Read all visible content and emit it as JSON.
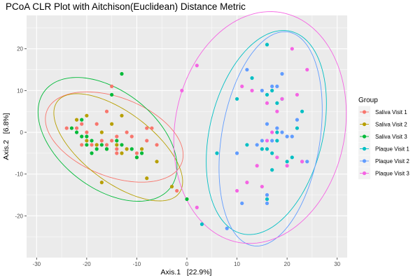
{
  "title": "PCoA CLR Plot with Aitchison(Euclidean) Distance Metric",
  "chart_data": {
    "type": "scatter",
    "title": "PCoA CLR Plot with Aitchison(Euclidean) Distance Metric",
    "xlabel": "Axis.1   [22.9%]",
    "ylabel": "Axis.2   [6.8%]",
    "xlim": [
      -32,
      32
    ],
    "ylim": [
      -30,
      28
    ],
    "xticks": [
      -30,
      -20,
      -10,
      0,
      10,
      20,
      30
    ],
    "yticks": [
      -20,
      -10,
      0,
      10,
      20
    ],
    "grid": true,
    "legend_title": "Group",
    "legend_position": "right",
    "series": [
      {
        "name": "Saliva Visit 1",
        "color": "#F8766D",
        "ellipse": true,
        "points": [
          [
            -24,
            1
          ],
          [
            -22,
            1
          ],
          [
            -21,
            2
          ],
          [
            -20,
            0
          ],
          [
            -21,
            -3
          ],
          [
            -19,
            -3
          ],
          [
            -18,
            2
          ],
          [
            -17,
            -2
          ],
          [
            -16,
            -3
          ],
          [
            -16,
            5
          ],
          [
            -14,
            -1
          ],
          [
            -14,
            -5
          ],
          [
            -12,
            0
          ],
          [
            -11,
            -1
          ],
          [
            -10,
            -5
          ],
          [
            -8,
            -2
          ],
          [
            -8,
            1
          ],
          [
            -7,
            1
          ],
          [
            -6,
            -3
          ],
          [
            -15,
            11
          ],
          [
            -2,
            -14
          ],
          [
            -14,
            -4
          ],
          [
            -18,
            -3
          ],
          [
            -15,
            -2
          ]
        ]
      },
      {
        "name": "Saliva Visit 2",
        "color": "#B79F00",
        "ellipse": true,
        "points": [
          [
            -22,
            3
          ],
          [
            -20,
            4
          ],
          [
            -18,
            -3
          ],
          [
            -17,
            0
          ],
          [
            -16,
            -4
          ],
          [
            -14,
            -3
          ],
          [
            -13,
            -5
          ],
          [
            -13,
            4
          ],
          [
            -12,
            -4
          ],
          [
            -10,
            -6
          ],
          [
            -9,
            -4
          ],
          [
            -8,
            -11
          ],
          [
            -17,
            -12
          ],
          [
            -6,
            -7
          ],
          [
            -20,
            -2
          ],
          [
            -15,
            2
          ],
          [
            -3,
            -13
          ]
        ]
      },
      {
        "name": "Saliva Visit 3",
        "color": "#00BA38",
        "ellipse": true,
        "points": [
          [
            -23,
            1
          ],
          [
            -22,
            0
          ],
          [
            -21,
            -1
          ],
          [
            -20,
            -1
          ],
          [
            -20,
            -3
          ],
          [
            -19,
            -2
          ],
          [
            -19,
            -5
          ],
          [
            -18,
            -4
          ],
          [
            -17,
            -3
          ],
          [
            -16,
            -4
          ],
          [
            -15,
            9
          ],
          [
            -13,
            14
          ],
          [
            -13,
            -3
          ],
          [
            -11,
            -4
          ],
          [
            -10,
            -6
          ],
          [
            -9,
            -5
          ],
          [
            -21,
            3
          ],
          [
            0,
            -16
          ],
          [
            -14,
            -2
          ]
        ]
      },
      {
        "name": "Plaque Visit 1",
        "color": "#00BFC4",
        "ellipse": true,
        "points": [
          [
            10,
            8
          ],
          [
            12,
            -3
          ],
          [
            13,
            13
          ],
          [
            15,
            -4
          ],
          [
            16,
            -4
          ],
          [
            16,
            21
          ],
          [
            16,
            -16
          ],
          [
            17,
            -9
          ],
          [
            17,
            -5
          ],
          [
            17,
            10
          ],
          [
            18,
            7
          ],
          [
            18,
            0
          ],
          [
            19,
            8
          ],
          [
            20,
            -7
          ],
          [
            21,
            -6
          ],
          [
            22,
            1
          ],
          [
            23,
            5
          ],
          [
            3,
            -22
          ],
          [
            6,
            -5
          ],
          [
            16,
            9
          ],
          [
            18,
            -2
          ]
        ]
      },
      {
        "name": "Plaque Visit 2",
        "color": "#619CFF",
        "ellipse": true,
        "points": [
          [
            12,
            15
          ],
          [
            14,
            -3
          ],
          [
            15,
            -2
          ],
          [
            15,
            10
          ],
          [
            16,
            -17
          ],
          [
            16,
            2
          ],
          [
            17,
            11
          ],
          [
            18,
            11
          ],
          [
            18,
            1
          ],
          [
            19,
            14
          ],
          [
            19,
            0
          ],
          [
            20,
            -1
          ],
          [
            21,
            -1
          ],
          [
            22,
            3
          ],
          [
            23,
            -7
          ],
          [
            24,
            -7
          ],
          [
            10,
            -5
          ],
          [
            8,
            -23
          ],
          [
            11,
            -17
          ],
          [
            16,
            -15
          ],
          [
            17,
            -2
          ]
        ]
      },
      {
        "name": "Plaque Visit 3",
        "color": "#F564E3",
        "ellipse": true,
        "points": [
          [
            -1,
            10
          ],
          [
            2,
            16
          ],
          [
            2,
            -18
          ],
          [
            11,
            11
          ],
          [
            12,
            -12
          ],
          [
            13,
            10
          ],
          [
            14,
            -8
          ],
          [
            15,
            -13
          ],
          [
            16,
            7
          ],
          [
            16,
            -2
          ],
          [
            17,
            0
          ],
          [
            18,
            5
          ],
          [
            18,
            -6
          ],
          [
            19,
            8
          ],
          [
            20,
            -8
          ],
          [
            21,
            20
          ],
          [
            22,
            9
          ],
          [
            23,
            -7
          ],
          [
            24,
            15
          ],
          [
            10,
            -14
          ]
        ]
      }
    ]
  }
}
